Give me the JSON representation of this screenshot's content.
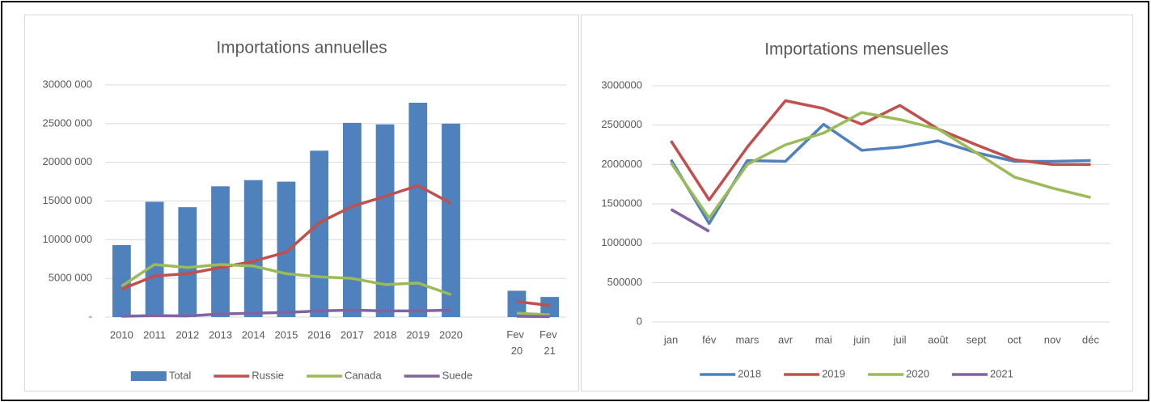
{
  "chart_data": [
    {
      "type": "combo",
      "title": "Importations annuelles",
      "categories": [
        "2010",
        "2011",
        "2012",
        "2013",
        "2014",
        "2015",
        "2016",
        "2017",
        "2018",
        "2019",
        "2020",
        null,
        "Fev 20",
        "Fev 21"
      ],
      "series": [
        {
          "name": "Total",
          "type": "bar",
          "color": "#4f81bd",
          "values": [
            9300000,
            14900000,
            14200000,
            16900000,
            17700000,
            17500000,
            21500000,
            25100000,
            24900000,
            27700000,
            25000000,
            null,
            3400000,
            2600000
          ]
        },
        {
          "name": "Russie",
          "type": "line",
          "color": "#c0504d",
          "values": [
            3600000,
            5300000,
            5600000,
            6400000,
            7200000,
            8400000,
            12200000,
            14300000,
            15600000,
            17000000,
            14700000,
            null,
            2000000,
            1500000
          ]
        },
        {
          "name": "Canada",
          "type": "line",
          "color": "#9bbb59",
          "values": [
            4000000,
            6800000,
            6400000,
            6800000,
            6600000,
            5600000,
            5200000,
            5000000,
            4200000,
            4400000,
            2900000,
            null,
            500000,
            300000
          ]
        },
        {
          "name": "Suede",
          "type": "line",
          "color": "#8064a2",
          "values": [
            100000,
            200000,
            150000,
            400000,
            500000,
            600000,
            800000,
            900000,
            800000,
            800000,
            900000,
            null,
            100000,
            50000
          ]
        }
      ],
      "ylim": [
        0,
        30000000
      ],
      "yticks": [
        {
          "value": 0,
          "label": "-"
        },
        {
          "value": 5000000,
          "label": "5000 000"
        },
        {
          "value": 10000000,
          "label": "10000 000"
        },
        {
          "value": 15000000,
          "label": "15000 000"
        },
        {
          "value": 20000000,
          "label": "20000 000"
        },
        {
          "value": 25000000,
          "label": "25000 000"
        },
        {
          "value": 30000000,
          "label": "30000 000"
        }
      ],
      "grid": true,
      "legend": "bottom"
    },
    {
      "type": "line",
      "title": "Importations mensuelles",
      "categories": [
        "jan",
        "fév",
        "mars",
        "avr",
        "mai",
        "juin",
        "juil",
        "août",
        "sept",
        "oct",
        "nov",
        "déc"
      ],
      "series": [
        {
          "name": "2018",
          "color": "#4f81bd",
          "values": [
            2060000,
            1250000,
            2050000,
            2040000,
            2510000,
            2180000,
            2220000,
            2300000,
            2150000,
            2040000,
            2040000,
            2050000
          ]
        },
        {
          "name": "2019",
          "color": "#c0504d",
          "values": [
            2300000,
            1550000,
            2220000,
            2810000,
            2710000,
            2510000,
            2750000,
            2450000,
            2250000,
            2060000,
            2000000,
            2000000
          ]
        },
        {
          "name": "2020",
          "color": "#9bbb59",
          "values": [
            2020000,
            1320000,
            2000000,
            2250000,
            2400000,
            2660000,
            2570000,
            2450000,
            2150000,
            1840000,
            1700000,
            1580000
          ]
        },
        {
          "name": "2021",
          "color": "#8064a2",
          "values": [
            1430000,
            1150000,
            null,
            null,
            null,
            null,
            null,
            null,
            null,
            null,
            null,
            null
          ]
        }
      ],
      "ylim": [
        0,
        3000000
      ],
      "yticks": [
        0,
        500000,
        1000000,
        1500000,
        2000000,
        2500000,
        3000000
      ],
      "grid": true,
      "legend": "bottom"
    }
  ]
}
